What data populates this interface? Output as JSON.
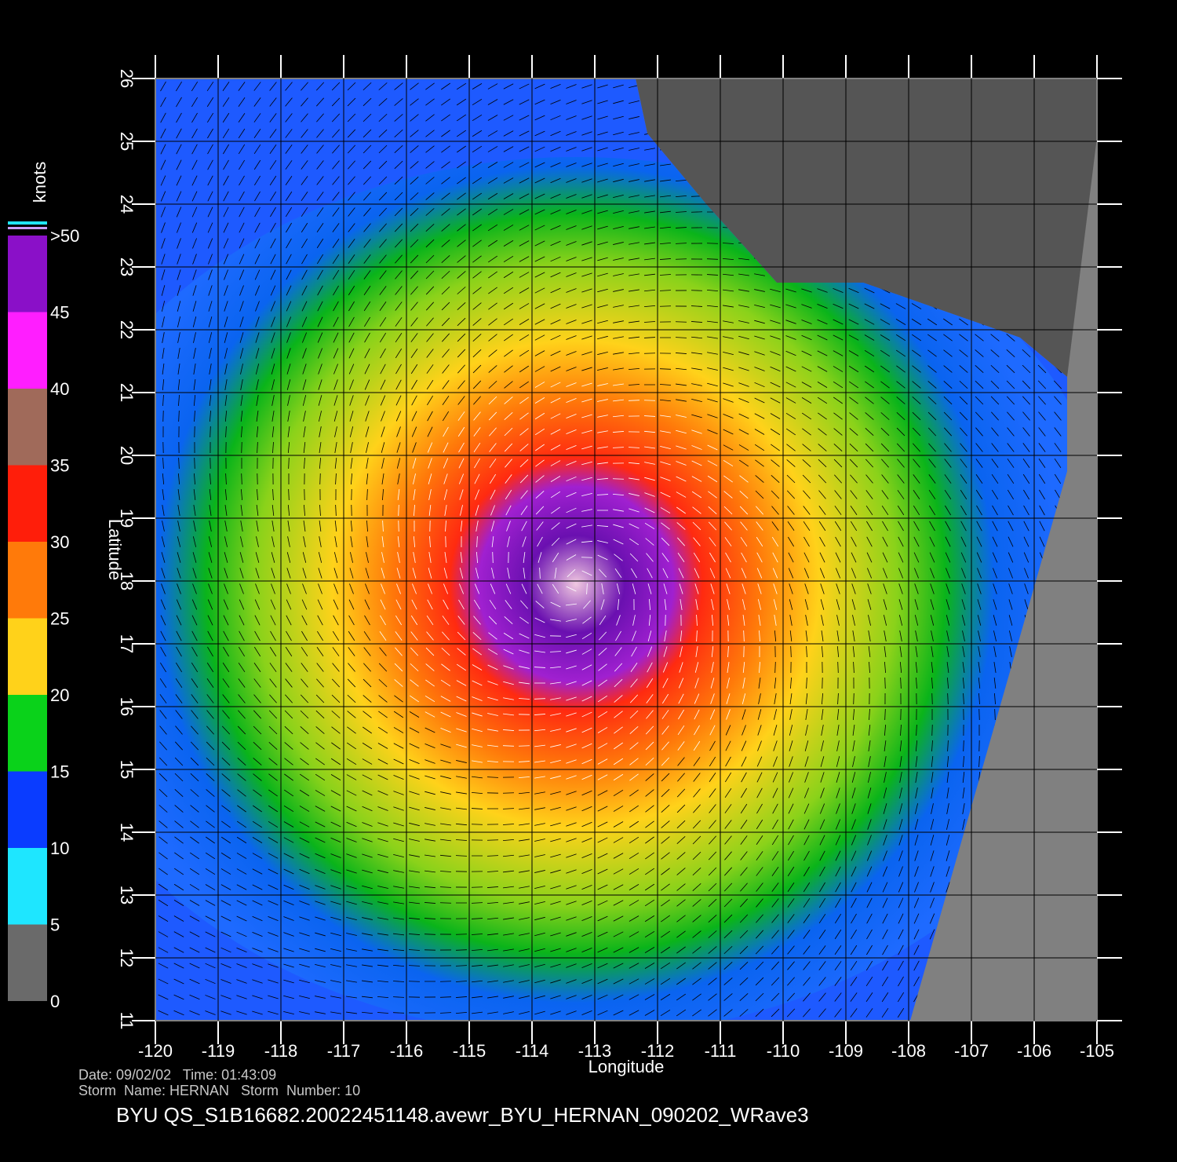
{
  "map": {
    "xlabel": "Longitude",
    "ylabel": "Latitude",
    "xlim": [
      -120,
      -105
    ],
    "ylim": [
      11,
      26
    ],
    "xticks": [
      -120,
      -119,
      -118,
      -117,
      -116,
      -115,
      -114,
      -113,
      -112,
      -111,
      -110,
      -109,
      -108,
      -107,
      -106,
      -105
    ],
    "yticks": [
      11,
      12,
      13,
      14,
      15,
      16,
      17,
      18,
      19,
      20,
      21,
      22,
      23,
      24,
      25,
      26
    ]
  },
  "colorbar": {
    "title": "knots",
    "lim": [
      0,
      50
    ],
    "ticks": [
      0,
      5,
      10,
      15,
      20,
      25,
      30,
      35,
      40,
      45,
      {
        "value": 50,
        "label": ">50"
      }
    ],
    "colors": [
      "#6a6a6a",
      "#1ee6ff",
      "#0a3cff",
      "#0ad21a",
      "#ffd21a",
      "#ff7a0a",
      "#ff1e0a",
      "#a06a5a",
      "#ff1eff",
      "#8a10c8"
    ]
  },
  "info": {
    "line1": "Date: 09/02/02   Time: 01:43:09",
    "line2": "Storm  Name: HERNAN   Storm  Number: 10",
    "file": "BYU  QS_S1B16682.20022451148.avewr_BYU_HERNAN_090202_WRave3"
  }
}
